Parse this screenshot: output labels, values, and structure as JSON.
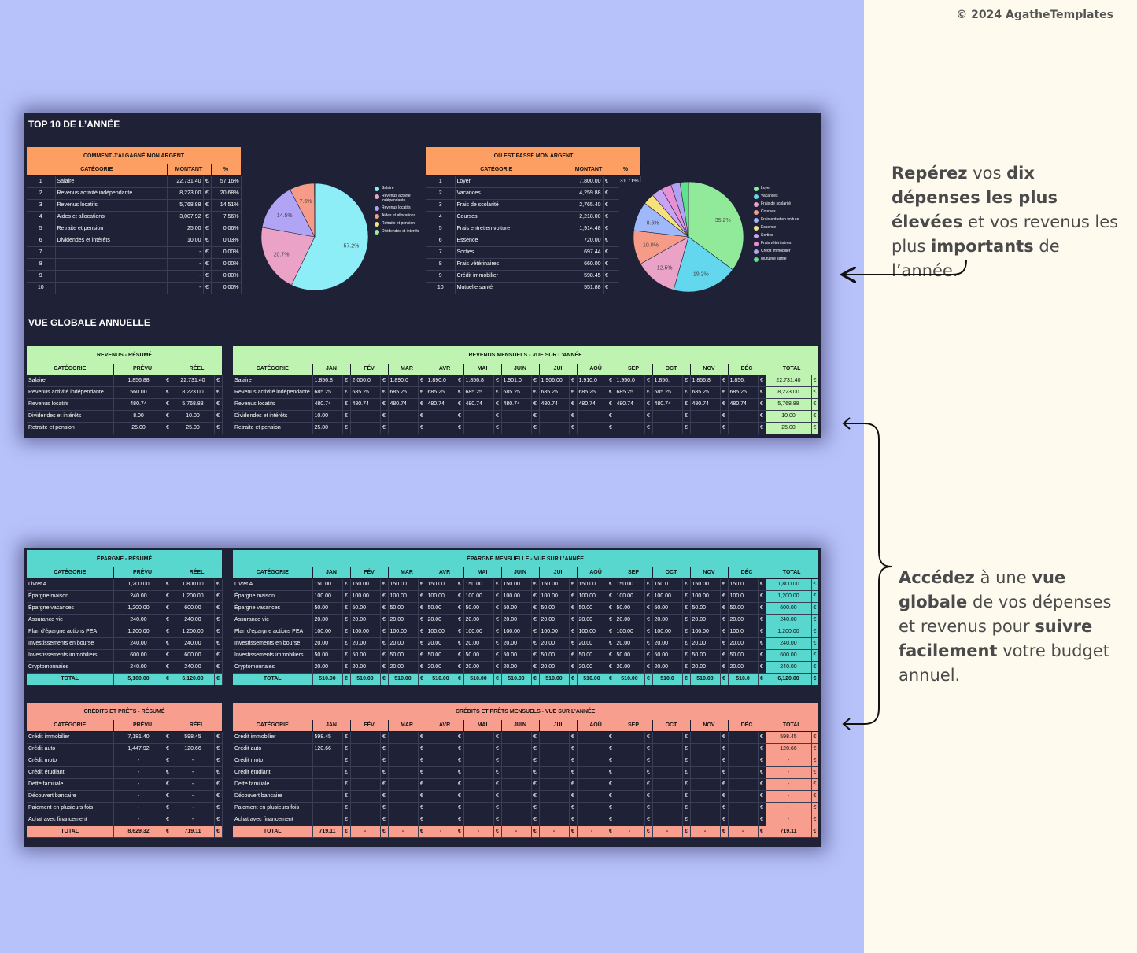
{
  "copyright": "© 2024 AgatheTemplates",
  "annotations": {
    "top": [
      {
        "text": "Repérez",
        "bold": true
      },
      {
        "text": " vos ",
        "bold": false
      },
      {
        "text": "dix dépenses les plus élevées",
        "bold": true
      },
      {
        "text": " et vos revenus les plus ",
        "bold": false
      },
      {
        "text": "importants",
        "bold": true
      },
      {
        "text": " de l’année.",
        "bold": false
      }
    ],
    "bottom": [
      {
        "text": "Accédez",
        "bold": true
      },
      {
        "text": " à une ",
        "bold": false
      },
      {
        "text": "vue globale",
        "bold": true
      },
      {
        "text": " de vos dépenses et revenus pour ",
        "bold": false
      },
      {
        "text": "suivre facilement",
        "bold": true
      },
      {
        "text": " votre budget annuel.",
        "bold": false
      }
    ]
  },
  "top10": {
    "title": "TOP 10 DE L’ANNÉE",
    "income": {
      "title": "COMMENT J’AI GAGNÉ MON ARGENT",
      "headers": [
        "CATÉGORIE",
        "MONTANT",
        "%"
      ],
      "rows": [
        [
          "1",
          "Salaire",
          "22,731.40",
          "€",
          "57.16%"
        ],
        [
          "2",
          "Revenus activité indépendante",
          "8,223.00",
          "€",
          "20.68%"
        ],
        [
          "3",
          "Revenus locatifs",
          "5,768.88",
          "€",
          "14.51%"
        ],
        [
          "4",
          "Aides et allocations",
          "3,007.92",
          "€",
          "7.56%"
        ],
        [
          "5",
          "Retraite et pension",
          "25.00",
          "€",
          "0.06%"
        ],
        [
          "6",
          "Dividendes et intérêts",
          "10.00",
          "€",
          "0.03%"
        ],
        [
          "7",
          "",
          "-",
          "€",
          "0.00%"
        ],
        [
          "8",
          "",
          "-",
          "€",
          "0.00%"
        ],
        [
          "9",
          "",
          "-",
          "€",
          "0.00%"
        ],
        [
          "10",
          "",
          "-",
          "€",
          "0.00%"
        ]
      ],
      "pie_labels": [
        "57.2%",
        "20.7%",
        "14.5%",
        "7.6%"
      ],
      "legend": [
        "Salaire",
        "Revenus activité indépendante",
        "Revenus locatifs",
        "Aides et allocations",
        "Retraite et pension",
        "Dividendes et intérêts"
      ]
    },
    "expense": {
      "title": "OÙ EST PASSÉ MON ARGENT",
      "headers": [
        "CATÉGORIE",
        "MONTANT",
        "%"
      ],
      "rows": [
        [
          "1",
          "Loyer",
          "7,800.00",
          "€",
          "31.71%"
        ],
        [
          "2",
          "Vacances",
          "4,259.88",
          "€",
          "17.32%"
        ],
        [
          "3",
          "Frais de scolarité",
          "2,765.40",
          "€",
          "11.24%"
        ],
        [
          "4",
          "Courses",
          "2,218.00",
          "€",
          "9.02%"
        ],
        [
          "5",
          "Frais entretien voiture",
          "1,914.48",
          "€",
          "7.78%"
        ],
        [
          "6",
          "Essence",
          "720.00",
          "€",
          "2.93%"
        ],
        [
          "7",
          "Sorties",
          "697.44",
          "€",
          "2.84%"
        ],
        [
          "8",
          "Frais vétérinaires",
          "660.00",
          "€",
          "2.68%"
        ],
        [
          "9",
          "Crédit immobilier",
          "598.45",
          "€",
          "2.43%"
        ],
        [
          "10",
          "Mutuelle santé",
          "551.88",
          "€",
          "2.24%"
        ]
      ],
      "pie_labels": [
        "35.2%",
        "19.2%",
        "12.5%",
        "10.0%",
        "8.6%"
      ],
      "legend": [
        "Loyer",
        "Vacances",
        "Frais de scolarité",
        "Courses",
        "Frais entretien voiture",
        "Essence",
        "Sorties",
        "Frais vétérinaires",
        "Crédit immobilier",
        "Mutuelle santé"
      ]
    }
  },
  "overview_title": "VUE GLOBALE ANNUELLE",
  "months": [
    "JAN",
    "FÉV",
    "MAR",
    "AVR",
    "MAI",
    "JUIN",
    "JUI",
    "AOÛ",
    "SEP",
    "OCT",
    "NOV",
    "DÉC"
  ],
  "revenue_summary": {
    "title": "REVENUS - RÉSUMÉ",
    "headers": [
      "CATÉGORIE",
      "PRÉVU",
      "RÉEL"
    ],
    "rows": [
      [
        "Salaire",
        "1,856.88",
        "22,731.40"
      ],
      [
        "Revenus activité indépendante",
        "560.00",
        "8,223.00"
      ],
      [
        "Revenus locatifs",
        "480.74",
        "5,768.88"
      ],
      [
        "Dividendes et intérêts",
        "8.00",
        "10.00"
      ],
      [
        "Retraite et pension",
        "25.00",
        "25.00"
      ]
    ]
  },
  "revenue_monthly": {
    "title": "REVENUS MENSUELS - VUE SUR L’ANNÉE",
    "total_header": "TOTAL",
    "rows": [
      {
        "cat": "Salaire",
        "m": [
          "1,856.8",
          "2,000.0",
          "1,890.0",
          "1,890.0",
          "1,856.8",
          "1,901.0",
          "1,906.00",
          "1,910.0",
          "1,950.0",
          "1,856.",
          "1,856.8",
          "1,856."
        ],
        "total": "22,731.40"
      },
      {
        "cat": "Revenus activité indépendante",
        "m": [
          "685.25",
          "685.25",
          "685.25",
          "685.25",
          "685.25",
          "685.25",
          "685.25",
          "685.25",
          "685.25",
          "685.25",
          "685.25",
          "685.25"
        ],
        "total": "8,223.00"
      },
      {
        "cat": "Revenus locatifs",
        "m": [
          "480.74",
          "480.74",
          "480.74",
          "480.74",
          "480.74",
          "480.74",
          "480.74",
          "480.74",
          "480.74",
          "480.74",
          "480.74",
          "480.74"
        ],
        "total": "5,768.88"
      },
      {
        "cat": "Dividendes et intérêts",
        "m": [
          "10.00",
          "",
          "",
          "",
          "",
          "",
          "",
          "",
          "",
          "",
          "",
          ""
        ],
        "total": "10.00"
      },
      {
        "cat": "Retraite et pension",
        "m": [
          "25.00",
          "",
          "",
          "",
          "",
          "",
          "",
          "",
          "",
          "",
          "",
          ""
        ],
        "total": "25.00"
      }
    ]
  },
  "savings_summary": {
    "title": "ÉPARGNE - RÉSUMÉ",
    "headers": [
      "CATÉGORIE",
      "PRÉVU",
      "RÉEL"
    ],
    "rows": [
      [
        "Livret A",
        "1,200.00",
        "1,800.00"
      ],
      [
        "Épargne maison",
        "240.00",
        "1,200.00"
      ],
      [
        "Épargne vacances",
        "1,200.00",
        "600.00"
      ],
      [
        "Assurance vie",
        "240.00",
        "240.00"
      ],
      [
        "Plan d’épargne actions PEA",
        "1,200.00",
        "1,200.00"
      ],
      [
        "Investissements en bourse",
        "240.00",
        "240.00"
      ],
      [
        "Investissements immobiliers",
        "600.00",
        "600.00"
      ],
      [
        "Cryptomonnaies",
        "240.00",
        "240.00"
      ]
    ],
    "total": [
      "TOTAL",
      "5,160.00",
      "6,120.00"
    ]
  },
  "savings_monthly": {
    "title": "ÉPARGNE MENSUELLE - VUE SUR L’ANNÉE",
    "total_header": "TOTAL",
    "rows": [
      {
        "cat": "Livret A",
        "m": [
          "150.00",
          "150.00",
          "150.00",
          "150.00",
          "150.00",
          "150.00",
          "150.00",
          "150.00",
          "150.00",
          "150.0",
          "150.00",
          "150.0"
        ],
        "total": "1,800.00"
      },
      {
        "cat": "Épargne maison",
        "m": [
          "100.00",
          "100.00",
          "100.00",
          "100.00",
          "100.00",
          "100.00",
          "100.00",
          "100.00",
          "100.00",
          "100.00",
          "100.00",
          "100.0"
        ],
        "total": "1,200.00"
      },
      {
        "cat": "Épargne vacances",
        "m": [
          "50.00",
          "50.00",
          "50.00",
          "50.00",
          "50.00",
          "50.00",
          "50.00",
          "50.00",
          "50.00",
          "50.00",
          "50.00",
          "50.00"
        ],
        "total": "600.00"
      },
      {
        "cat": "Assurance vie",
        "m": [
          "20.00",
          "20.00",
          "20.00",
          "20.00",
          "20.00",
          "20.00",
          "20.00",
          "20.00",
          "20.00",
          "20.00",
          "20.00",
          "20.00"
        ],
        "total": "240.00"
      },
      {
        "cat": "Plan d’épargne actions PEA",
        "m": [
          "100.00",
          "100.00",
          "100.00",
          "100.00",
          "100.00",
          "100.00",
          "100.00",
          "100.00",
          "100.00",
          "100.00",
          "100.00",
          "100.0"
        ],
        "total": "1,200.00"
      },
      {
        "cat": "Investissements en bourse",
        "m": [
          "20.00",
          "20.00",
          "20.00",
          "20.00",
          "20.00",
          "20.00",
          "20.00",
          "20.00",
          "20.00",
          "20.00",
          "20.00",
          "20.00"
        ],
        "total": "240.00"
      },
      {
        "cat": "Investissements immobiliers",
        "m": [
          "50.00",
          "50.00",
          "50.00",
          "50.00",
          "50.00",
          "50.00",
          "50.00",
          "50.00",
          "50.00",
          "50.00",
          "50.00",
          "50.00"
        ],
        "total": "600.00"
      },
      {
        "cat": "Cryptomonnaies",
        "m": [
          "20.00",
          "20.00",
          "20.00",
          "20.00",
          "20.00",
          "20.00",
          "20.00",
          "20.00",
          "20.00",
          "20.00",
          "20.00",
          "20.00"
        ],
        "total": "240.00"
      }
    ],
    "total_row": {
      "cat": "TOTAL",
      "m": [
        "510.00",
        "510.00",
        "510.00",
        "510.00",
        "510.00",
        "510.00",
        "510.00",
        "510.00",
        "510.00",
        "510.0",
        "510.00",
        "510.0"
      ],
      "total": "6,120.00"
    }
  },
  "credit_summary": {
    "title": "CRÉDITS ET PRÊTS - RÉSUMÉ",
    "headers": [
      "CATÉGORIE",
      "PRÉVU",
      "RÉEL"
    ],
    "rows": [
      [
        "Crédit immobilier",
        "7,181.40",
        "598.45"
      ],
      [
        "Crédit auto",
        "1,447.92",
        "120.66"
      ],
      [
        "Crédit moto",
        "-",
        "-"
      ],
      [
        "Crédit étudiant",
        "-",
        "-"
      ],
      [
        "Dette familiale",
        "-",
        "-"
      ],
      [
        "Découvert bancaire",
        "-",
        "-"
      ],
      [
        "Paiement en plusieurs fois",
        "-",
        "-"
      ],
      [
        "Achat avec financement",
        "-",
        "-"
      ]
    ],
    "total": [
      "TOTAL",
      "8,629.32",
      "719.11"
    ]
  },
  "credit_monthly": {
    "title": "CRÉDITS ET PRÊTS MENSUELS - VUE SUR L’ANNÉE",
    "total_header": "TOTAL",
    "rows": [
      {
        "cat": "Crédit immobilier",
        "m": [
          "598.45",
          "",
          "",
          "",
          "",
          "",
          "",
          "",
          "",
          "",
          "",
          ""
        ],
        "total": "598.45"
      },
      {
        "cat": "Crédit auto",
        "m": [
          "120.66",
          "",
          "",
          "",
          "",
          "",
          "",
          "",
          "",
          "",
          "",
          ""
        ],
        "total": "120.66"
      },
      {
        "cat": "Crédit moto",
        "m": [
          "",
          "",
          "",
          "",
          "",
          "",
          "",
          "",
          "",
          "",
          "",
          ""
        ],
        "total": "-"
      },
      {
        "cat": "Crédit étudiant",
        "m": [
          "",
          "",
          "",
          "",
          "",
          "",
          "",
          "",
          "",
          "",
          "",
          ""
        ],
        "total": "-"
      },
      {
        "cat": "Dette familiale",
        "m": [
          "",
          "",
          "",
          "",
          "",
          "",
          "",
          "",
          "",
          "",
          "",
          ""
        ],
        "total": "-"
      },
      {
        "cat": "Découvert bancaire",
        "m": [
          "",
          "",
          "",
          "",
          "",
          "",
          "",
          "",
          "",
          "",
          "",
          ""
        ],
        "total": "-"
      },
      {
        "cat": "Paiement en plusieurs fois",
        "m": [
          "",
          "",
          "",
          "",
          "",
          "",
          "",
          "",
          "",
          "",
          "",
          ""
        ],
        "total": "-"
      },
      {
        "cat": "Achat avec financement",
        "m": [
          "",
          "",
          "",
          "",
          "",
          "",
          "",
          "",
          "",
          "",
          "",
          ""
        ],
        "total": "-"
      }
    ],
    "total_row": {
      "cat": "TOTAL",
      "m": [
        "719.11",
        "-",
        "-",
        "-",
        "-",
        "-",
        "-",
        "-",
        "-",
        "-",
        "-",
        "-"
      ],
      "total": "719.11"
    }
  },
  "currency": "€",
  "colors": {
    "orange": "#fd9f63",
    "green": "#bff3b1",
    "teal": "#58d7cf",
    "salmon": "#f89e8e",
    "panel": "#1f2237",
    "bg_left": "#b7c1fa"
  },
  "chart_data": [
    {
      "type": "pie",
      "title": "COMMENT J’AI GAGNÉ MON ARGENT",
      "categories": [
        "Salaire",
        "Revenus activité indépendante",
        "Revenus locatifs",
        "Aides et allocations",
        "Retraite et pension",
        "Dividendes et intérêts"
      ],
      "values": [
        57.16,
        20.68,
        14.51,
        7.56,
        0.06,
        0.03
      ],
      "colors": [
        "#8eeef7",
        "#eaa3c6",
        "#b2a4f5",
        "#f69b87",
        "#f6e17d",
        "#9fe8a3"
      ]
    },
    {
      "type": "pie",
      "title": "OÙ EST PASSÉ MON ARGENT",
      "categories": [
        "Loyer",
        "Vacances",
        "Frais de scolarité",
        "Courses",
        "Frais entretien voiture",
        "Essence",
        "Sorties",
        "Frais vétérinaires",
        "Crédit immobilier",
        "Mutuelle santé"
      ],
      "values": [
        31.71,
        17.32,
        11.24,
        9.02,
        7.78,
        2.93,
        2.84,
        2.68,
        2.43,
        2.24
      ],
      "colors": [
        "#90ea9a",
        "#63d7ee",
        "#eaa3c6",
        "#f69b87",
        "#9fb7fb",
        "#f6e17d",
        "#c7a4f5",
        "#e98fd3",
        "#b3a2f0",
        "#5ee38a"
      ]
    }
  ]
}
